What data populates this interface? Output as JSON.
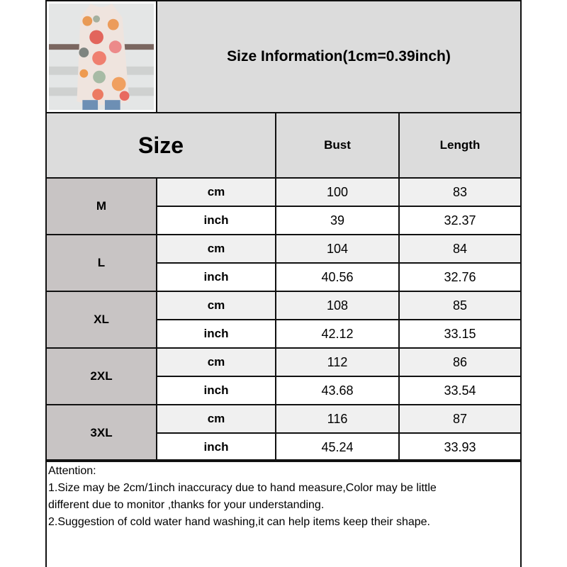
{
  "title": "Size Information(1cm=0.39inch)",
  "header": {
    "size": "Size",
    "bust": "Bust",
    "length": "Length"
  },
  "rows": [
    {
      "size": "M",
      "cm": {
        "unit": "cm",
        "bust": "100",
        "length": "83"
      },
      "inch": {
        "unit": "inch",
        "bust": "39",
        "length": "32.37"
      }
    },
    {
      "size": "L",
      "cm": {
        "unit": "cm",
        "bust": "104",
        "length": "84"
      },
      "inch": {
        "unit": "inch",
        "bust": "40.56",
        "length": "32.76"
      }
    },
    {
      "size": "XL",
      "cm": {
        "unit": "cm",
        "bust": "108",
        "length": "85"
      },
      "inch": {
        "unit": "inch",
        "bust": "42.12",
        "length": "33.15"
      }
    },
    {
      "size": "2XL",
      "cm": {
        "unit": "cm",
        "bust": "112",
        "length": "86"
      },
      "inch": {
        "unit": "inch",
        "bust": "43.68",
        "length": "33.54"
      }
    },
    {
      "size": "3XL",
      "cm": {
        "unit": "cm",
        "bust": "116",
        "length": "87"
      },
      "inch": {
        "unit": "inch",
        "bust": "45.24",
        "length": "33.93"
      }
    }
  ],
  "notes": [
    "Attention:",
    "1.Size may be 2cm/1inch inaccuracy due to hand measure,Color may be little",
    "different due to monitor ,thanks for your understanding.",
    "2.Suggestion of cold water hand washing,it can help items keep their shape."
  ],
  "colors": {
    "header_bg": "#dcdcdc",
    "size_bg": "#c8c4c4",
    "cm_row_bg": "#f0f0f0",
    "inch_row_bg": "#ffffff",
    "border": "#111111"
  }
}
